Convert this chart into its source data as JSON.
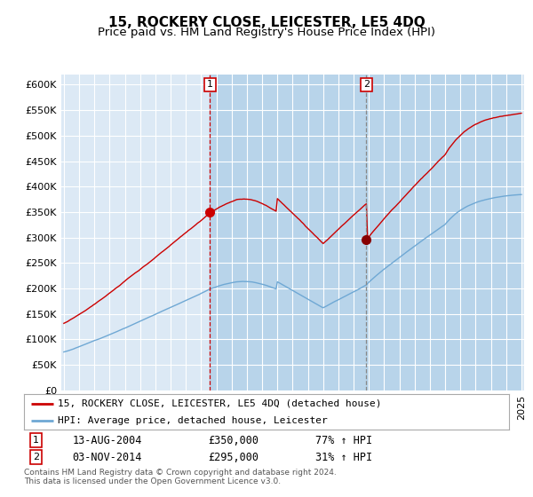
{
  "title": "15, ROCKERY CLOSE, LEICESTER, LE5 4DQ",
  "subtitle": "Price paid vs. HM Land Registry's House Price Index (HPI)",
  "ylim": [
    0,
    620000
  ],
  "yticks": [
    0,
    50000,
    100000,
    150000,
    200000,
    250000,
    300000,
    350000,
    400000,
    450000,
    500000,
    550000,
    600000
  ],
  "ytick_labels": [
    "£0",
    "£50K",
    "£100K",
    "£150K",
    "£200K",
    "£250K",
    "£300K",
    "£350K",
    "£400K",
    "£450K",
    "£500K",
    "£550K",
    "£600K"
  ],
  "background_color": "#ffffff",
  "plot_bg_color": "#dce9f5",
  "shade_color": "#b8d4ea",
  "grid_color": "#ffffff",
  "red_line_color": "#cc0000",
  "blue_line_color": "#6fa8d4",
  "sale1_month": 115,
  "sale2_month": 238,
  "sale1_price": 350000,
  "sale2_price": 295000,
  "sale1_date": "13-AUG-2004",
  "sale2_date": "03-NOV-2014",
  "sale1_pct": "77% ↑ HPI",
  "sale2_pct": "31% ↑ HPI",
  "legend_label1": "15, ROCKERY CLOSE, LEICESTER, LE5 4DQ (detached house)",
  "legend_label2": "HPI: Average price, detached house, Leicester",
  "footer": "Contains HM Land Registry data © Crown copyright and database right 2024.\nThis data is licensed under the Open Government Licence v3.0.",
  "title_fontsize": 11,
  "subtitle_fontsize": 9.5,
  "axis_fontsize": 8,
  "n_months": 361
}
